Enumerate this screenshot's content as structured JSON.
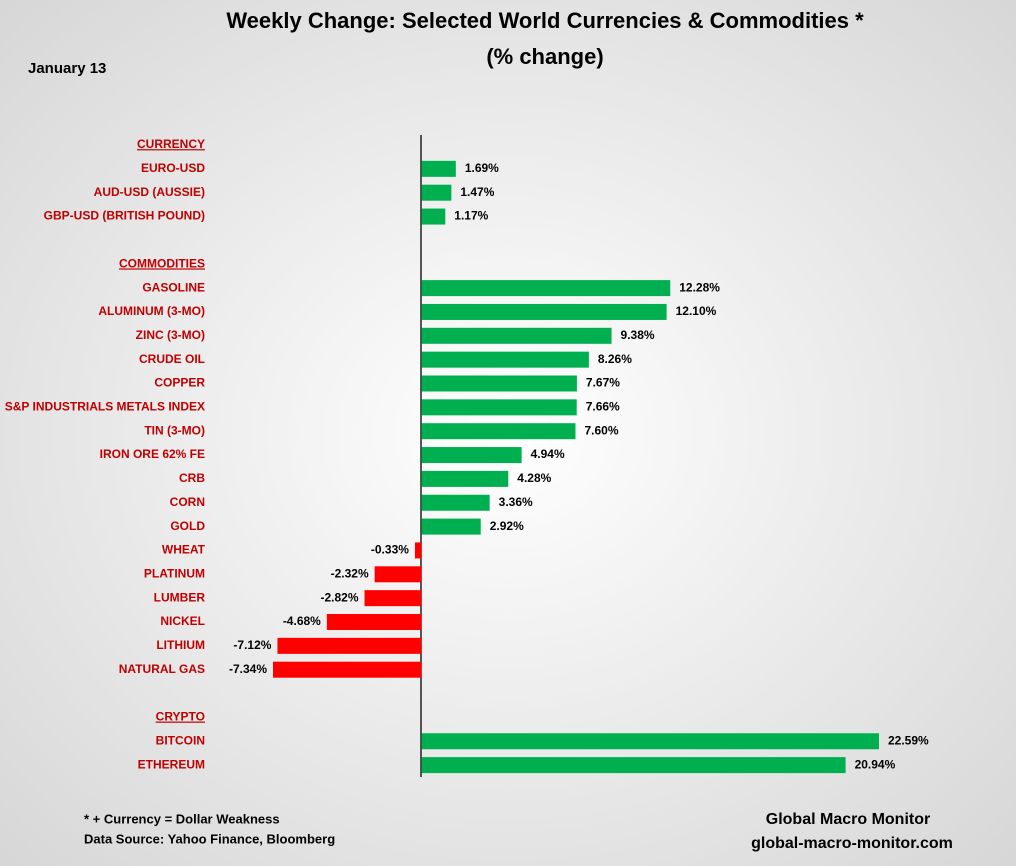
{
  "chart_data": {
    "type": "bar",
    "orientation": "horizontal",
    "title": "Weekly Change: Selected World Currencies & Commodities *",
    "subtitle": "(% change)",
    "date": "January 13",
    "positive_color": "#00b050",
    "negative_color": "#ff0000",
    "sections": [
      {
        "name": "CURRENCY",
        "categories": [
          "EURO-USD",
          "AUD-USD (AUSSIE)",
          "GBP-USD (BRITISH POUND)"
        ],
        "values": [
          1.69,
          1.47,
          1.17
        ],
        "value_labels": [
          "1.69%",
          "1.47%",
          "1.17%"
        ]
      },
      {
        "name": "COMMODITIES",
        "categories": [
          "GASOLINE",
          "ALUMINUM (3-MO)",
          "ZINC (3-MO)",
          "CRUDE OIL",
          "COPPER",
          "S&P INDUSTRIALS METALS INDEX",
          "TIN (3-MO)",
          "IRON ORE 62% FE",
          "CRB",
          "CORN",
          "GOLD",
          "WHEAT",
          "PLATINUM",
          "LUMBER",
          "NICKEL",
          "LITHIUM",
          "NATURAL GAS"
        ],
        "values": [
          12.28,
          12.1,
          9.38,
          8.26,
          7.67,
          7.66,
          7.6,
          4.94,
          4.28,
          3.36,
          2.92,
          -0.33,
          -2.32,
          -2.82,
          -4.68,
          -7.12,
          -7.34
        ],
        "value_labels": [
          "12.28%",
          "12.10%",
          "9.38%",
          "8.26%",
          "7.67%",
          "7.66%",
          "7.60%",
          "4.94%",
          "4.28%",
          "3.36%",
          "2.92%",
          "-0.33%",
          "-2.32%",
          "-2.82%",
          "-4.68%",
          "-7.12%",
          "-7.34%"
        ]
      },
      {
        "name": "CRYPTO",
        "categories": [
          "BITCOIN",
          "ETHEREUM"
        ],
        "values": [
          22.59,
          20.94
        ],
        "value_labels": [
          "22.59%",
          "20.94%"
        ]
      }
    ],
    "footnote": "* + Currency = Dollar Weakness",
    "source": "Data Source:  Yahoo Finance, Bloomberg",
    "brand": "Global Macro Monitor",
    "website": "global-macro-monitor.com"
  }
}
